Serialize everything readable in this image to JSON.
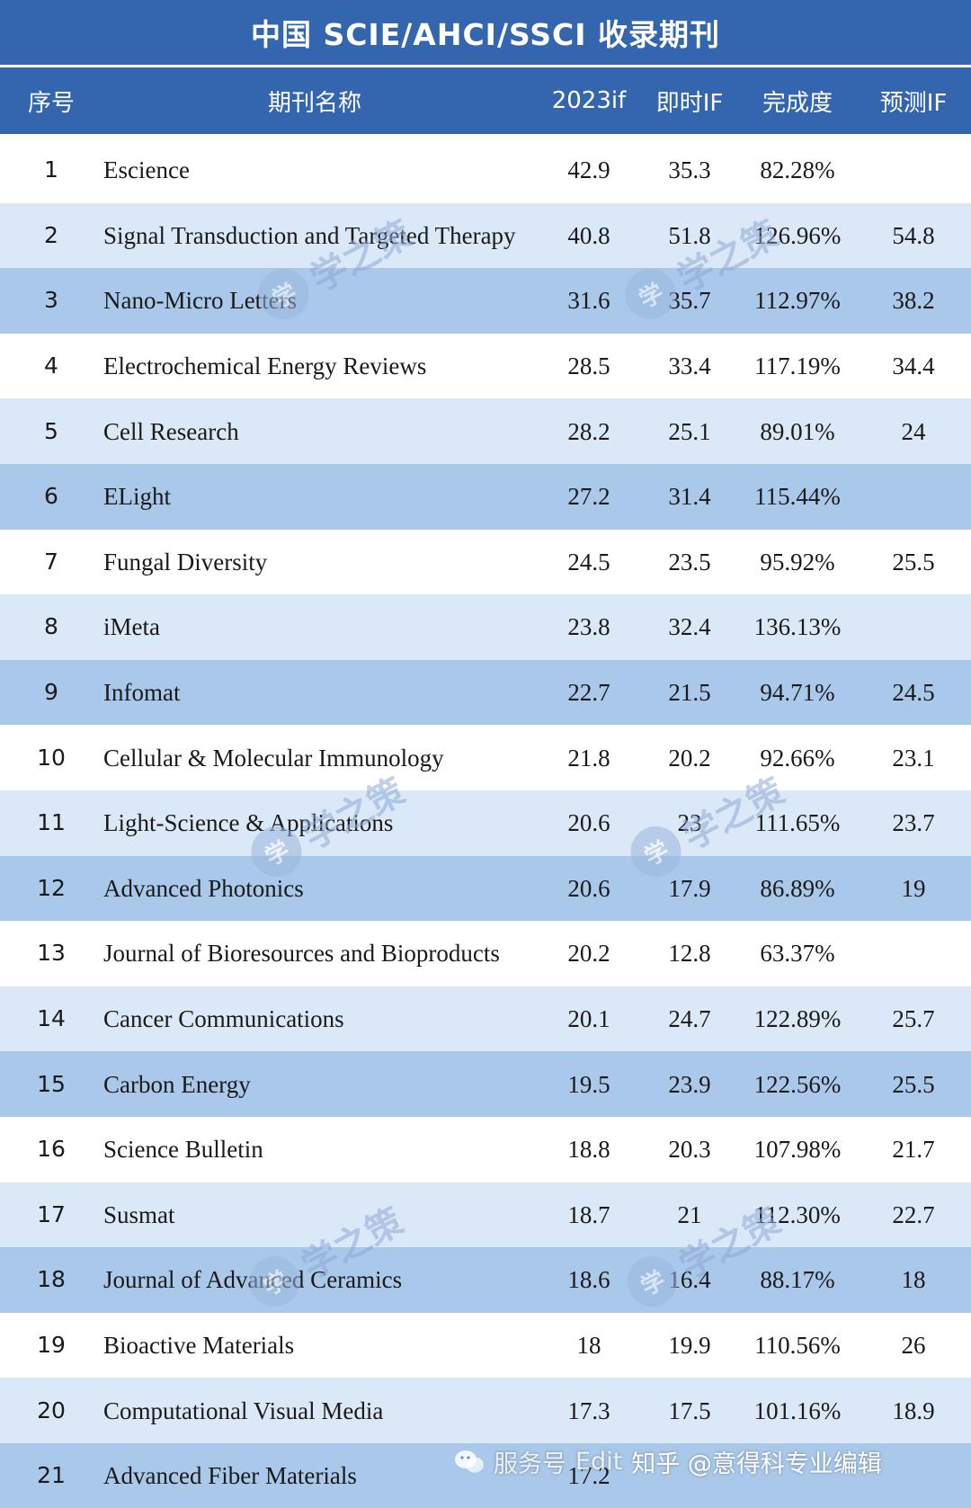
{
  "title": "中国 SCIE/AHCI/SSCI 收录期刊",
  "columns": {
    "no": "序号",
    "name": "期刊名称",
    "if2023": "2023if",
    "current_if": "即时IF",
    "completion": "完成度",
    "predicted_if": "预测IF"
  },
  "rows": [
    {
      "no": "1",
      "name": "Escience",
      "if2023": "42.9",
      "current_if": "35.3",
      "completion": "82.28%",
      "predicted_if": "",
      "bg": 0
    },
    {
      "no": "2",
      "name": "Signal Transduction and Targeted Therapy",
      "if2023": "40.8",
      "current_if": "51.8",
      "completion": "126.96%",
      "predicted_if": "54.8",
      "bg": 1
    },
    {
      "no": "3",
      "name": "Nano-Micro Letters",
      "if2023": "31.6",
      "current_if": "35.7",
      "completion": "112.97%",
      "predicted_if": "38.2",
      "bg": 2
    },
    {
      "no": "4",
      "name": "Electrochemical Energy Reviews",
      "if2023": "28.5",
      "current_if": "33.4",
      "completion": "117.19%",
      "predicted_if": "34.4",
      "bg": 0
    },
    {
      "no": "5",
      "name": "Cell Research",
      "if2023": "28.2",
      "current_if": "25.1",
      "completion": "89.01%",
      "predicted_if": "24",
      "bg": 1
    },
    {
      "no": "6",
      "name": "ELight",
      "if2023": "27.2",
      "current_if": "31.4",
      "completion": "115.44%",
      "predicted_if": "",
      "bg": 2
    },
    {
      "no": "7",
      "name": "Fungal Diversity",
      "if2023": "24.5",
      "current_if": "23.5",
      "completion": "95.92%",
      "predicted_if": "25.5",
      "bg": 0
    },
    {
      "no": "8",
      "name": "iMeta",
      "if2023": "23.8",
      "current_if": "32.4",
      "completion": "136.13%",
      "predicted_if": "",
      "bg": 1
    },
    {
      "no": "9",
      "name": "Infomat",
      "if2023": "22.7",
      "current_if": "21.5",
      "completion": "94.71%",
      "predicted_if": "24.5",
      "bg": 2
    },
    {
      "no": "10",
      "name": "Cellular & Molecular Immunology",
      "if2023": "21.8",
      "current_if": "20.2",
      "completion": "92.66%",
      "predicted_if": "23.1",
      "bg": 0
    },
    {
      "no": "11",
      "name": "Light-Science & Applications",
      "if2023": "20.6",
      "current_if": "23",
      "completion": "111.65%",
      "predicted_if": "23.7",
      "bg": 1
    },
    {
      "no": "12",
      "name": "Advanced Photonics",
      "if2023": "20.6",
      "current_if": "17.9",
      "completion": "86.89%",
      "predicted_if": "19",
      "bg": 2
    },
    {
      "no": "13",
      "name": "Journal of Bioresources and Bioproducts",
      "if2023": "20.2",
      "current_if": "12.8",
      "completion": "63.37%",
      "predicted_if": "",
      "bg": 0
    },
    {
      "no": "14",
      "name": "Cancer Communications",
      "if2023": "20.1",
      "current_if": "24.7",
      "completion": "122.89%",
      "predicted_if": "25.7",
      "bg": 1
    },
    {
      "no": "15",
      "name": "Carbon Energy",
      "if2023": "19.5",
      "current_if": "23.9",
      "completion": "122.56%",
      "predicted_if": "25.5",
      "bg": 2
    },
    {
      "no": "16",
      "name": "Science Bulletin",
      "if2023": "18.8",
      "current_if": "20.3",
      "completion": "107.98%",
      "predicted_if": "21.7",
      "bg": 0
    },
    {
      "no": "17",
      "name": "Susmat",
      "if2023": "18.7",
      "current_if": "21",
      "completion": "112.30%",
      "predicted_if": "22.7",
      "bg": 1
    },
    {
      "no": "18",
      "name": "Journal of Advanced Ceramics",
      "if2023": "18.6",
      "current_if": "16.4",
      "completion": "88.17%",
      "predicted_if": "18",
      "bg": 2
    },
    {
      "no": "19",
      "name": "Bioactive Materials",
      "if2023": "18",
      "current_if": "19.9",
      "completion": "110.56%",
      "predicted_if": "26",
      "bg": 0
    },
    {
      "no": "20",
      "name": "Computational Visual Media",
      "if2023": "17.3",
      "current_if": "17.5",
      "completion": "101.16%",
      "predicted_if": "18.9",
      "bg": 1
    },
    {
      "no": "21",
      "name": "Advanced Fiber Materials",
      "if2023": "17.2",
      "current_if": "",
      "completion": "",
      "predicted_if": "",
      "bg": 2
    }
  ],
  "watermark": {
    "seal_char": "学",
    "text": "学之策"
  },
  "footer_watermark": {
    "service_label": "服务号",
    "partial": "Edit",
    "zhihu": "知乎 @意得科专业编辑"
  },
  "colors": {
    "header_bg": "#3466b0",
    "row_white": "#ffffff",
    "row_light": "#dbe8f7",
    "row_mid": "#a9c8ea"
  }
}
